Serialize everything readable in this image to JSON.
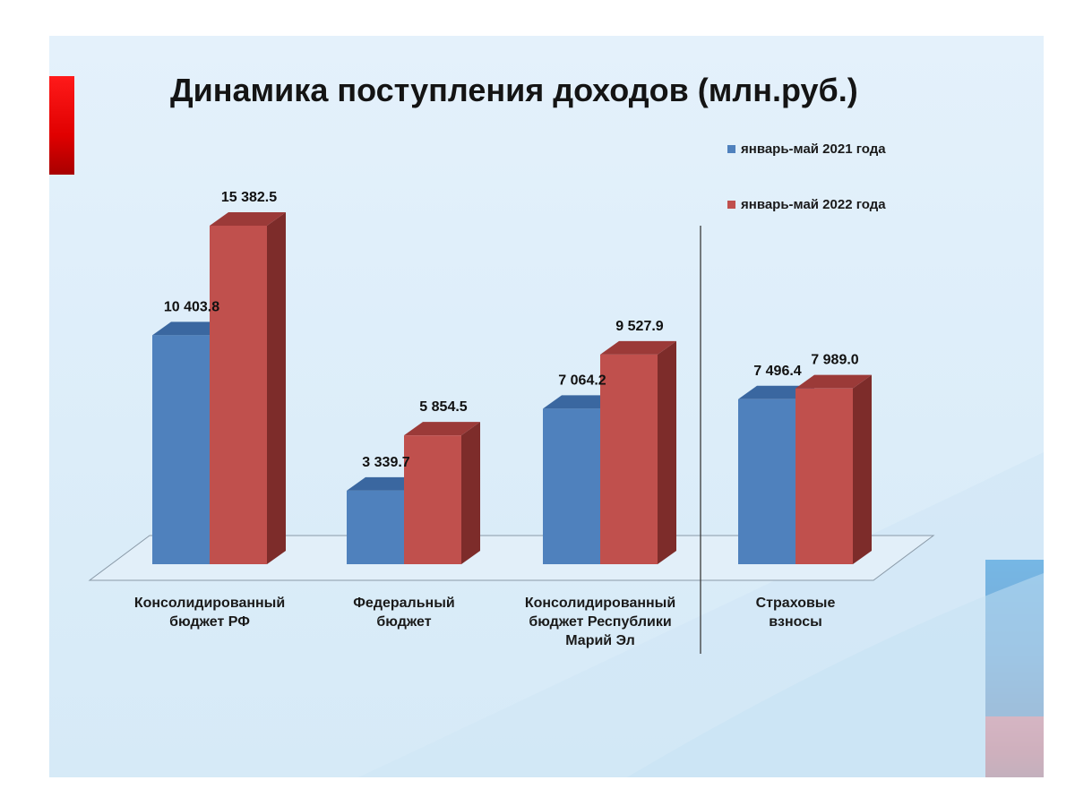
{
  "title": "Динамика поступления доходов (млн.руб.)",
  "colors": {
    "series_2021": "#4f81bd",
    "series_2021_top": "#3a67a0",
    "series_2021_side": "#2e5587",
    "series_2022": "#c0504d",
    "series_2022_top": "#9b3a38",
    "series_2022_side": "#7d2c2a"
  },
  "chart_data": {
    "type": "bar",
    "title": "Динамика поступления доходов (млн.руб.)",
    "categories": [
      [
        "Консолидированный",
        "бюджет  РФ"
      ],
      [
        "Федеральный",
        "бюджет"
      ],
      [
        "Консолидированный",
        "бюджет Республики",
        "Марий Эл"
      ],
      [
        "Страховые",
        "взносы"
      ]
    ],
    "series": [
      {
        "name": "январь-май 2021 года",
        "values": [
          10403.8,
          3339.7,
          7064.2,
          7496.4
        ],
        "labels": [
          "10 403.8",
          "3 339.7",
          "7 064.2",
          "7 496.4"
        ]
      },
      {
        "name": "январь-май 2022 года",
        "values": [
          15382.5,
          5854.5,
          9527.9,
          7989.0
        ],
        "labels": [
          "15 382.5",
          "5 854.5",
          "9 527.9",
          "7 989.0"
        ]
      }
    ],
    "ylim": [
      0,
      16000
    ],
    "xlabel": "",
    "ylabel": "",
    "grid": false,
    "legend": "top-right",
    "style": "3d-clustered-column"
  }
}
